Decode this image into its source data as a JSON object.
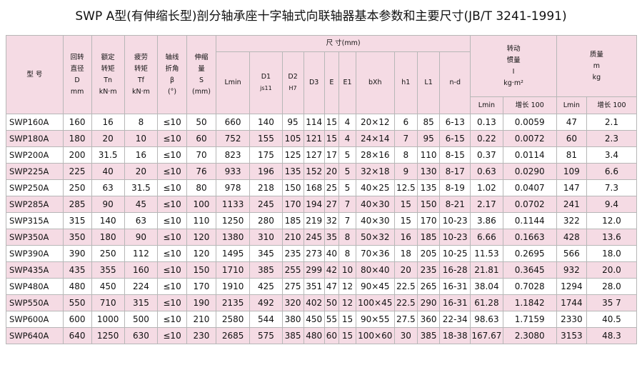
{
  "title": "SWP A型(有伸缩长型)剖分轴承座十字轴式向联轴器基本参数和主要尺寸(JB/T 3241-1991)",
  "headers": {
    "model": "型  号",
    "slew_dia": [
      "回转",
      "直径",
      "D",
      "mm"
    ],
    "rated_torque": [
      "额定",
      "转矩",
      "Tn",
      "kN·m"
    ],
    "fatigue_torque": [
      "疲劳",
      "转矩",
      "Tf",
      "kN·m"
    ],
    "angle": [
      "轴线",
      "折角",
      "β",
      "(°)"
    ],
    "telescopic": [
      "伸缩",
      "量",
      "S",
      "(mm)"
    ],
    "dimensions": "尺      寸(mm)",
    "lmin": "Lmin",
    "d1": [
      "D1",
      "js11"
    ],
    "d2": [
      "D2",
      "H7"
    ],
    "d3": "D3",
    "e": "E",
    "e1": "E1",
    "bxh": "bXh",
    "h1": "h1",
    "l1": "L1",
    "nd": "n-d",
    "inertia": [
      "转动",
      "惯量",
      "I",
      "kg·m²"
    ],
    "mass": [
      "质量",
      "m",
      "kg"
    ],
    "sub_lmin": "Lmin",
    "sub_inc": "增长 100"
  },
  "rows": [
    [
      "SWP160A",
      "160",
      "16",
      "8",
      "≤10",
      "50",
      "660",
      "140",
      "95",
      "114",
      "15",
      "4",
      "20×12",
      "6",
      "85",
      "6-13",
      "0.13",
      "0.0059",
      "47",
      "2.1"
    ],
    [
      "SWP180A",
      "180",
      "20",
      "10",
      "≤10",
      "60",
      "752",
      "155",
      "105",
      "121",
      "15",
      "4",
      "24×14",
      "7",
      "95",
      "6-15",
      "0.22",
      "0.0072",
      "60",
      "2.3"
    ],
    [
      "SWP200A",
      "200",
      "31.5",
      "16",
      "≤10",
      "70",
      "823",
      "175",
      "125",
      "127",
      "17",
      "5",
      "28×16",
      "8",
      "110",
      "8-15",
      "0.37",
      "0.0114",
      "81",
      "3.4"
    ],
    [
      "SWP225A",
      "225",
      "40",
      "20",
      "≤10",
      "76",
      "933",
      "196",
      "135",
      "152",
      "20",
      "5",
      "32×18",
      "9",
      "130",
      "8-17",
      "0.63",
      "0.0290",
      "109",
      "6.6"
    ],
    [
      "SWP250A",
      "250",
      "63",
      "31.5",
      "≤10",
      "80",
      "978",
      "218",
      "150",
      "168",
      "25",
      "5",
      "40×25",
      "12.5",
      "135",
      "8-19",
      "1.02",
      "0.0407",
      "147",
      "7.3"
    ],
    [
      "SWP285A",
      "285",
      "90",
      "45",
      "≤10",
      "100",
      "1133",
      "245",
      "170",
      "194",
      "27",
      "7",
      "40×30",
      "15",
      "150",
      "8-21",
      "2.17",
      "0.0702",
      "241",
      "9.4"
    ],
    [
      "SWP315A",
      "315",
      "140",
      "63",
      "≤10",
      "110",
      "1250",
      "280",
      "185",
      "219",
      "32",
      "7",
      "40×30",
      "15",
      "170",
      "10-23",
      "3.86",
      "0.1144",
      "322",
      "12.0"
    ],
    [
      "SWP350A",
      "350",
      "180",
      "90",
      "≤10",
      "120",
      "1380",
      "310",
      "210",
      "245",
      "35",
      "8",
      "50×32",
      "16",
      "185",
      "10-23",
      "6.66",
      "0.1663",
      "428",
      "13.6"
    ],
    [
      "SWP390A",
      "390",
      "250",
      "112",
      "≤10",
      "120",
      "1495",
      "345",
      "235",
      "273",
      "40",
      "8",
      "70×36",
      "18",
      "205",
      "10-25",
      "11.53",
      "0.2695",
      "566",
      "18.0"
    ],
    [
      "SWP435A",
      "435",
      "355",
      "160",
      "≤10",
      "150",
      "1710",
      "385",
      "255",
      "299",
      "42",
      "10",
      "80×40",
      "20",
      "235",
      "16-28",
      "21.81",
      "0.3645",
      "932",
      "20.0"
    ],
    [
      "SWP480A",
      "480",
      "450",
      "224",
      "≤10",
      "170",
      "1910",
      "425",
      "275",
      "351",
      "47",
      "12",
      "90×45",
      "22.5",
      "265",
      "16-31",
      "38.04",
      "0.7028",
      "1294",
      "28.0"
    ],
    [
      "SWP550A",
      "550",
      "710",
      "315",
      "≤10",
      "190",
      "2135",
      "492",
      "320",
      "402",
      "50",
      "12",
      "100×45",
      "22.5",
      "290",
      "16-31",
      "61.28",
      "1.1842",
      "1744",
      "35 7"
    ],
    [
      "SWP600A",
      "600",
      "1000",
      "500",
      "≤10",
      "210",
      "2580",
      "544",
      "380",
      "450",
      "55",
      "15",
      "90×55",
      "27.5",
      "360",
      "22-34",
      "98.63",
      "1.7159",
      "2330",
      "40.5"
    ],
    [
      "SWP640A",
      "640",
      "1250",
      "630",
      "≤10",
      "230",
      "2685",
      "575",
      "385",
      "480",
      "60",
      "15",
      "100×60",
      "30",
      "385",
      "18-38",
      "167.67",
      "2.3080",
      "3153",
      "48.3"
    ]
  ]
}
